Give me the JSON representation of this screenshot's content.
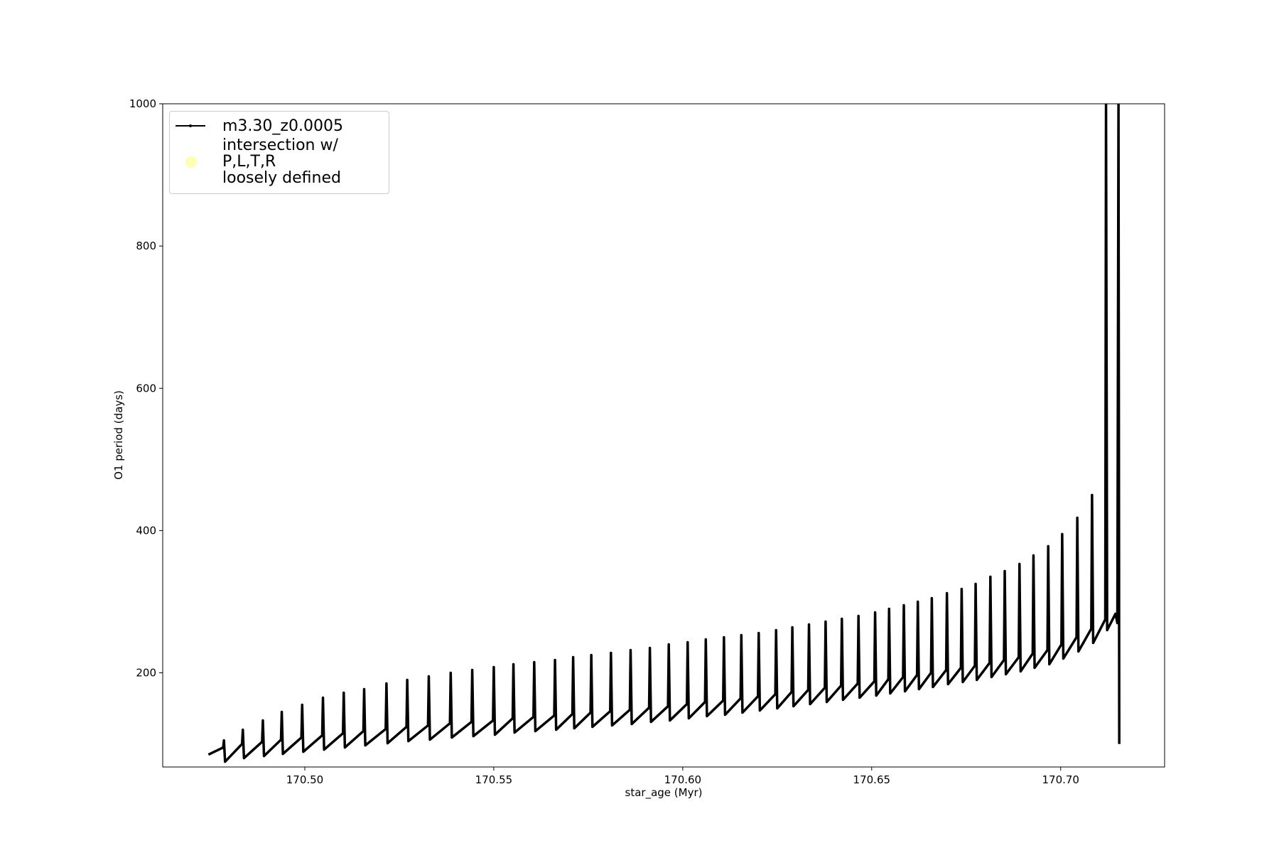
{
  "chart_data": {
    "type": "line",
    "xlabel": "star_age (Myr)",
    "ylabel": "O1 period (days)",
    "xlim": [
      170.4624,
      170.7275
    ],
    "ylim": [
      67.6,
      1000
    ],
    "xticks": [
      {
        "value": 170.5,
        "label": "170.50"
      },
      170.55,
      {
        "value": 170.6,
        "label": "170.60"
      },
      170.65,
      {
        "value": 170.7,
        "label": "170.70"
      }
    ],
    "yticks": [
      200,
      400,
      600,
      800,
      1000
    ],
    "grid": false,
    "legend": "upper left",
    "x": [
      170.4745,
      170.4784,
      170.4786,
      170.4789,
      170.4834,
      170.4836,
      170.4839,
      170.4887,
      170.4889,
      170.4892,
      170.4937,
      170.4939,
      170.4942,
      170.4991,
      170.4993,
      170.4996,
      170.5046,
      170.5048,
      170.5051,
      170.5101,
      170.5103,
      170.5106,
      170.5155,
      170.5157,
      170.516,
      170.5214,
      170.5216,
      170.5219,
      170.5269,
      170.5271,
      170.5274,
      170.5326,
      170.5328,
      170.5331,
      170.5384,
      170.5386,
      170.5389,
      170.5441,
      170.5443,
      170.5446,
      170.5498,
      170.55,
      170.5503,
      170.555,
      170.5552,
      170.5555,
      170.5605,
      170.5607,
      170.561,
      170.566,
      170.5662,
      170.5665,
      170.5708,
      170.571,
      170.5713,
      170.5756,
      170.5758,
      170.5761,
      170.5808,
      170.581,
      170.5813,
      170.586,
      170.5862,
      170.5865,
      170.5911,
      170.5913,
      170.5916,
      170.5961,
      170.5963,
      170.5966,
      170.6011,
      170.6013,
      170.6016,
      170.6059,
      170.6061,
      170.6064,
      170.6107,
      170.6109,
      170.6112,
      170.6153,
      170.6155,
      170.6158,
      170.6199,
      170.6201,
      170.6204,
      170.6245,
      170.6247,
      170.625,
      170.6288,
      170.629,
      170.6293,
      170.6332,
      170.6334,
      170.6337,
      170.6376,
      170.6378,
      170.6381,
      170.6419,
      170.6421,
      170.6424,
      170.6463,
      170.6465,
      170.6468,
      170.6507,
      170.6509,
      170.6512,
      170.6544,
      170.6546,
      170.6549,
      170.6583,
      170.6585,
      170.6588,
      170.662,
      170.6622,
      170.6625,
      170.6657,
      170.6659,
      170.6662,
      170.6697,
      170.6699,
      170.6702,
      170.6736,
      170.6738,
      170.6741,
      170.6773,
      170.6775,
      170.6778,
      170.6812,
      170.6814,
      170.6817,
      170.685,
      170.6852,
      170.6855,
      170.6889,
      170.6891,
      170.6894,
      170.6926,
      170.6928,
      170.6931,
      170.6965,
      170.6967,
      170.697,
      170.7002,
      170.7004,
      170.7007,
      170.7042,
      170.7044,
      170.7047,
      170.7081,
      170.7083,
      170.7086,
      170.7118,
      170.712,
      170.7123,
      170.7145,
      170.715,
      170.7153,
      170.7155
    ],
    "series": [
      {
        "name": "m3.30_z0.0005",
        "color": "#000000",
        "marker": ".",
        "values": [
          85,
          95,
          105,
          75,
          100,
          120,
          80,
          103,
          133,
          83,
          106,
          145,
          86,
          109,
          155,
          89,
          112,
          165,
          92,
          115,
          172,
          95,
          118,
          177,
          98,
          121,
          185,
          101,
          124,
          190,
          104,
          126,
          195,
          106,
          129,
          200,
          109,
          131,
          204,
          111,
          133,
          208,
          113,
          136,
          212,
          116,
          138,
          215,
          118,
          140,
          218,
          120,
          142,
          222,
          122,
          144,
          225,
          124,
          146,
          228,
          126,
          148,
          232,
          128,
          151,
          235,
          131,
          153,
          240,
          133,
          156,
          243,
          136,
          159,
          247,
          139,
          161,
          250,
          141,
          164,
          253,
          144,
          167,
          256,
          147,
          170,
          260,
          150,
          173,
          264,
          153,
          176,
          268,
          156,
          179,
          272,
          159,
          182,
          276,
          162,
          185,
          280,
          165,
          188,
          285,
          168,
          191,
          290,
          171,
          194,
          295,
          174,
          197,
          300,
          177,
          200,
          305,
          180,
          204,
          312,
          184,
          207,
          318,
          187,
          210,
          325,
          190,
          214,
          335,
          194,
          218,
          343,
          198,
          222,
          353,
          202,
          227,
          365,
          207,
          232,
          378,
          212,
          240,
          395,
          220,
          250,
          418,
          230,
          262,
          450,
          242,
          275,
          1000,
          260,
          283,
          270,
          1000,
          100
        ]
      },
      {
        "name": "intersection w/ P,L,T,R\nloosely defined",
        "color": "#ffffb3",
        "marker": "o",
        "x": [],
        "values": []
      }
    ]
  }
}
